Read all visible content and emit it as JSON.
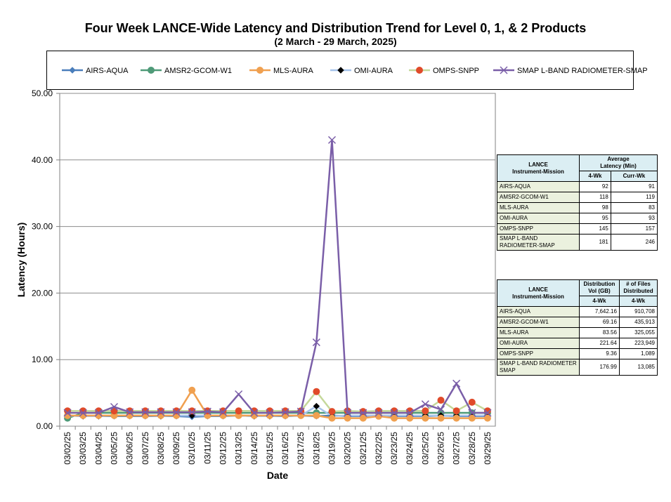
{
  "chart_data": {
    "type": "line",
    "title": "Four Week LANCE-Wide Latency and Distribution Trend for Level 0, 1, & 2 Products",
    "subtitle": "(2  March   -  29  March,  2025)",
    "xlabel": "Date",
    "ylabel": "Latency (Hours)",
    "ylim": [
      0,
      50
    ],
    "yticks": [
      "0.00",
      "10.00",
      "20.00",
      "30.00",
      "40.00",
      "50.00"
    ],
    "grid": true,
    "legend_position": "top",
    "categories": [
      "03/02/25",
      "03/03/25",
      "03/04/25",
      "03/05/25",
      "03/06/25",
      "03/07/25",
      "03/08/25",
      "03/09/25",
      "03/10/25",
      "03/11/25",
      "03/12/25",
      "03/13/25",
      "03/14/25",
      "03/15/25",
      "03/16/25",
      "03/17/25",
      "03/18/25",
      "03/19/25",
      "03/20/25",
      "03/21/25",
      "03/22/25",
      "03/23/25",
      "03/24/25",
      "03/25/25",
      "03/26/25",
      "03/27/25",
      "03/28/25",
      "03/29/25"
    ],
    "series": [
      {
        "name": "AIRS-AQUA",
        "color": "#4a7ebb",
        "marker": "diamond",
        "values": [
          1.6,
          1.5,
          1.5,
          1.5,
          1.5,
          1.5,
          1.5,
          1.5,
          1.4,
          1.5,
          1.5,
          1.6,
          1.5,
          1.5,
          1.5,
          1.6,
          1.5,
          1.6,
          1.5,
          1.5,
          1.5,
          1.5,
          1.5,
          1.5,
          1.6,
          1.5,
          1.5,
          1.5
        ]
      },
      {
        "name": "AMSR2-GCOM-W1",
        "color": "#4f9a78",
        "marker": "circle",
        "values": [
          1.2,
          2.0,
          2.0,
          2.0,
          2.0,
          2.0,
          2.0,
          2.0,
          2.0,
          2.0,
          2.0,
          2.0,
          2.0,
          2.0,
          2.0,
          2.0,
          2.0,
          2.0,
          2.0,
          2.0,
          2.0,
          2.0,
          2.0,
          2.0,
          2.0,
          2.0,
          2.0,
          2.0
        ]
      },
      {
        "name": "MLS-AURA",
        "color": "#f0a050",
        "marker": "circle",
        "values": [
          1.6,
          1.6,
          1.6,
          1.6,
          1.6,
          1.6,
          1.6,
          1.6,
          5.4,
          1.6,
          1.6,
          1.6,
          1.6,
          1.6,
          1.6,
          1.6,
          1.6,
          1.2,
          1.2,
          1.2,
          1.5,
          1.2,
          1.2,
          1.2,
          1.2,
          1.2,
          1.2,
          1.2
        ]
      },
      {
        "name": "OMI-AURA",
        "color": "#a6c3ea",
        "marker": "diamond",
        "values": [
          1.6,
          1.5,
          1.5,
          1.6,
          1.6,
          1.6,
          1.5,
          1.6,
          1.6,
          1.6,
          1.6,
          1.6,
          1.5,
          1.5,
          1.6,
          1.6,
          3.0,
          1.5,
          1.6,
          1.6,
          1.6,
          1.6,
          1.6,
          1.6,
          1.6,
          1.6,
          1.6,
          1.6
        ]
      },
      {
        "name": "OMPS-SNPP",
        "color": "#c5d89a",
        "marker": "circle",
        "values": [
          2.3,
          2.3,
          2.3,
          2.3,
          2.3,
          2.3,
          2.3,
          2.3,
          2.3,
          2.3,
          2.3,
          2.3,
          2.3,
          2.3,
          2.3,
          2.3,
          5.2,
          2.2,
          2.3,
          2.2,
          2.3,
          2.3,
          2.3,
          2.3,
          3.9,
          2.3,
          3.6,
          2.3
        ]
      },
      {
        "name": "SMAP L-BAND RADIOMETER-SMAP",
        "color": "#7a5ea8",
        "marker": "x",
        "values": [
          2.0,
          2.0,
          2.0,
          2.9,
          2.1,
          2.1,
          2.1,
          2.1,
          2.1,
          2.2,
          2.1,
          4.8,
          2.0,
          2.0,
          2.1,
          2.2,
          12.6,
          43.0,
          2.0,
          2.0,
          2.0,
          2.0,
          2.0,
          3.3,
          2.5,
          6.4,
          2.0,
          2.0
        ]
      }
    ]
  },
  "latency_table": {
    "header_col1": "LANCE\nInstrument-Mission",
    "header_col2": "Average\nLatency (Min)",
    "sub1": "4-Wk",
    "sub2": "Curr-Wk",
    "rows": [
      {
        "name": "AIRS-AQUA",
        "v1": "92",
        "v2": "91"
      },
      {
        "name": "AMSR2-GCOM-W1",
        "v1": "118",
        "v2": "119"
      },
      {
        "name": "MLS-AURA",
        "v1": "98",
        "v2": "83"
      },
      {
        "name": "OMI-AURA",
        "v1": "95",
        "v2": "93"
      },
      {
        "name": "OMPS-SNPP",
        "v1": "145",
        "v2": "157"
      },
      {
        "name": "SMAP L-BAND RADIOMETER-SMAP",
        "v1": "181",
        "v2": "246"
      }
    ]
  },
  "distribution_table": {
    "header_col1": "LANCE\nInstrument-Mission",
    "header_col2": "Distribution\nVol (GB)",
    "header_col3": "# of Files\nDistributed",
    "sub1": "4-Wk",
    "sub2": "4-Wk",
    "rows": [
      {
        "name": "AIRS-AQUA",
        "v1": "7,642.16",
        "v2": "910,708"
      },
      {
        "name": "AMSR2-GCOM-W1",
        "v1": "69.16",
        "v2": "435,913"
      },
      {
        "name": "MLS-AURA",
        "v1": "83.56",
        "v2": "325,055"
      },
      {
        "name": "OMI-AURA",
        "v1": "221.64",
        "v2": "223,949"
      },
      {
        "name": "OMPS-SNPP",
        "v1": "9.36",
        "v2": "1,089"
      },
      {
        "name": "SMAP L-BAND RADIOMETER SMAP",
        "v1": "176.99",
        "v2": "13,085"
      }
    ]
  }
}
